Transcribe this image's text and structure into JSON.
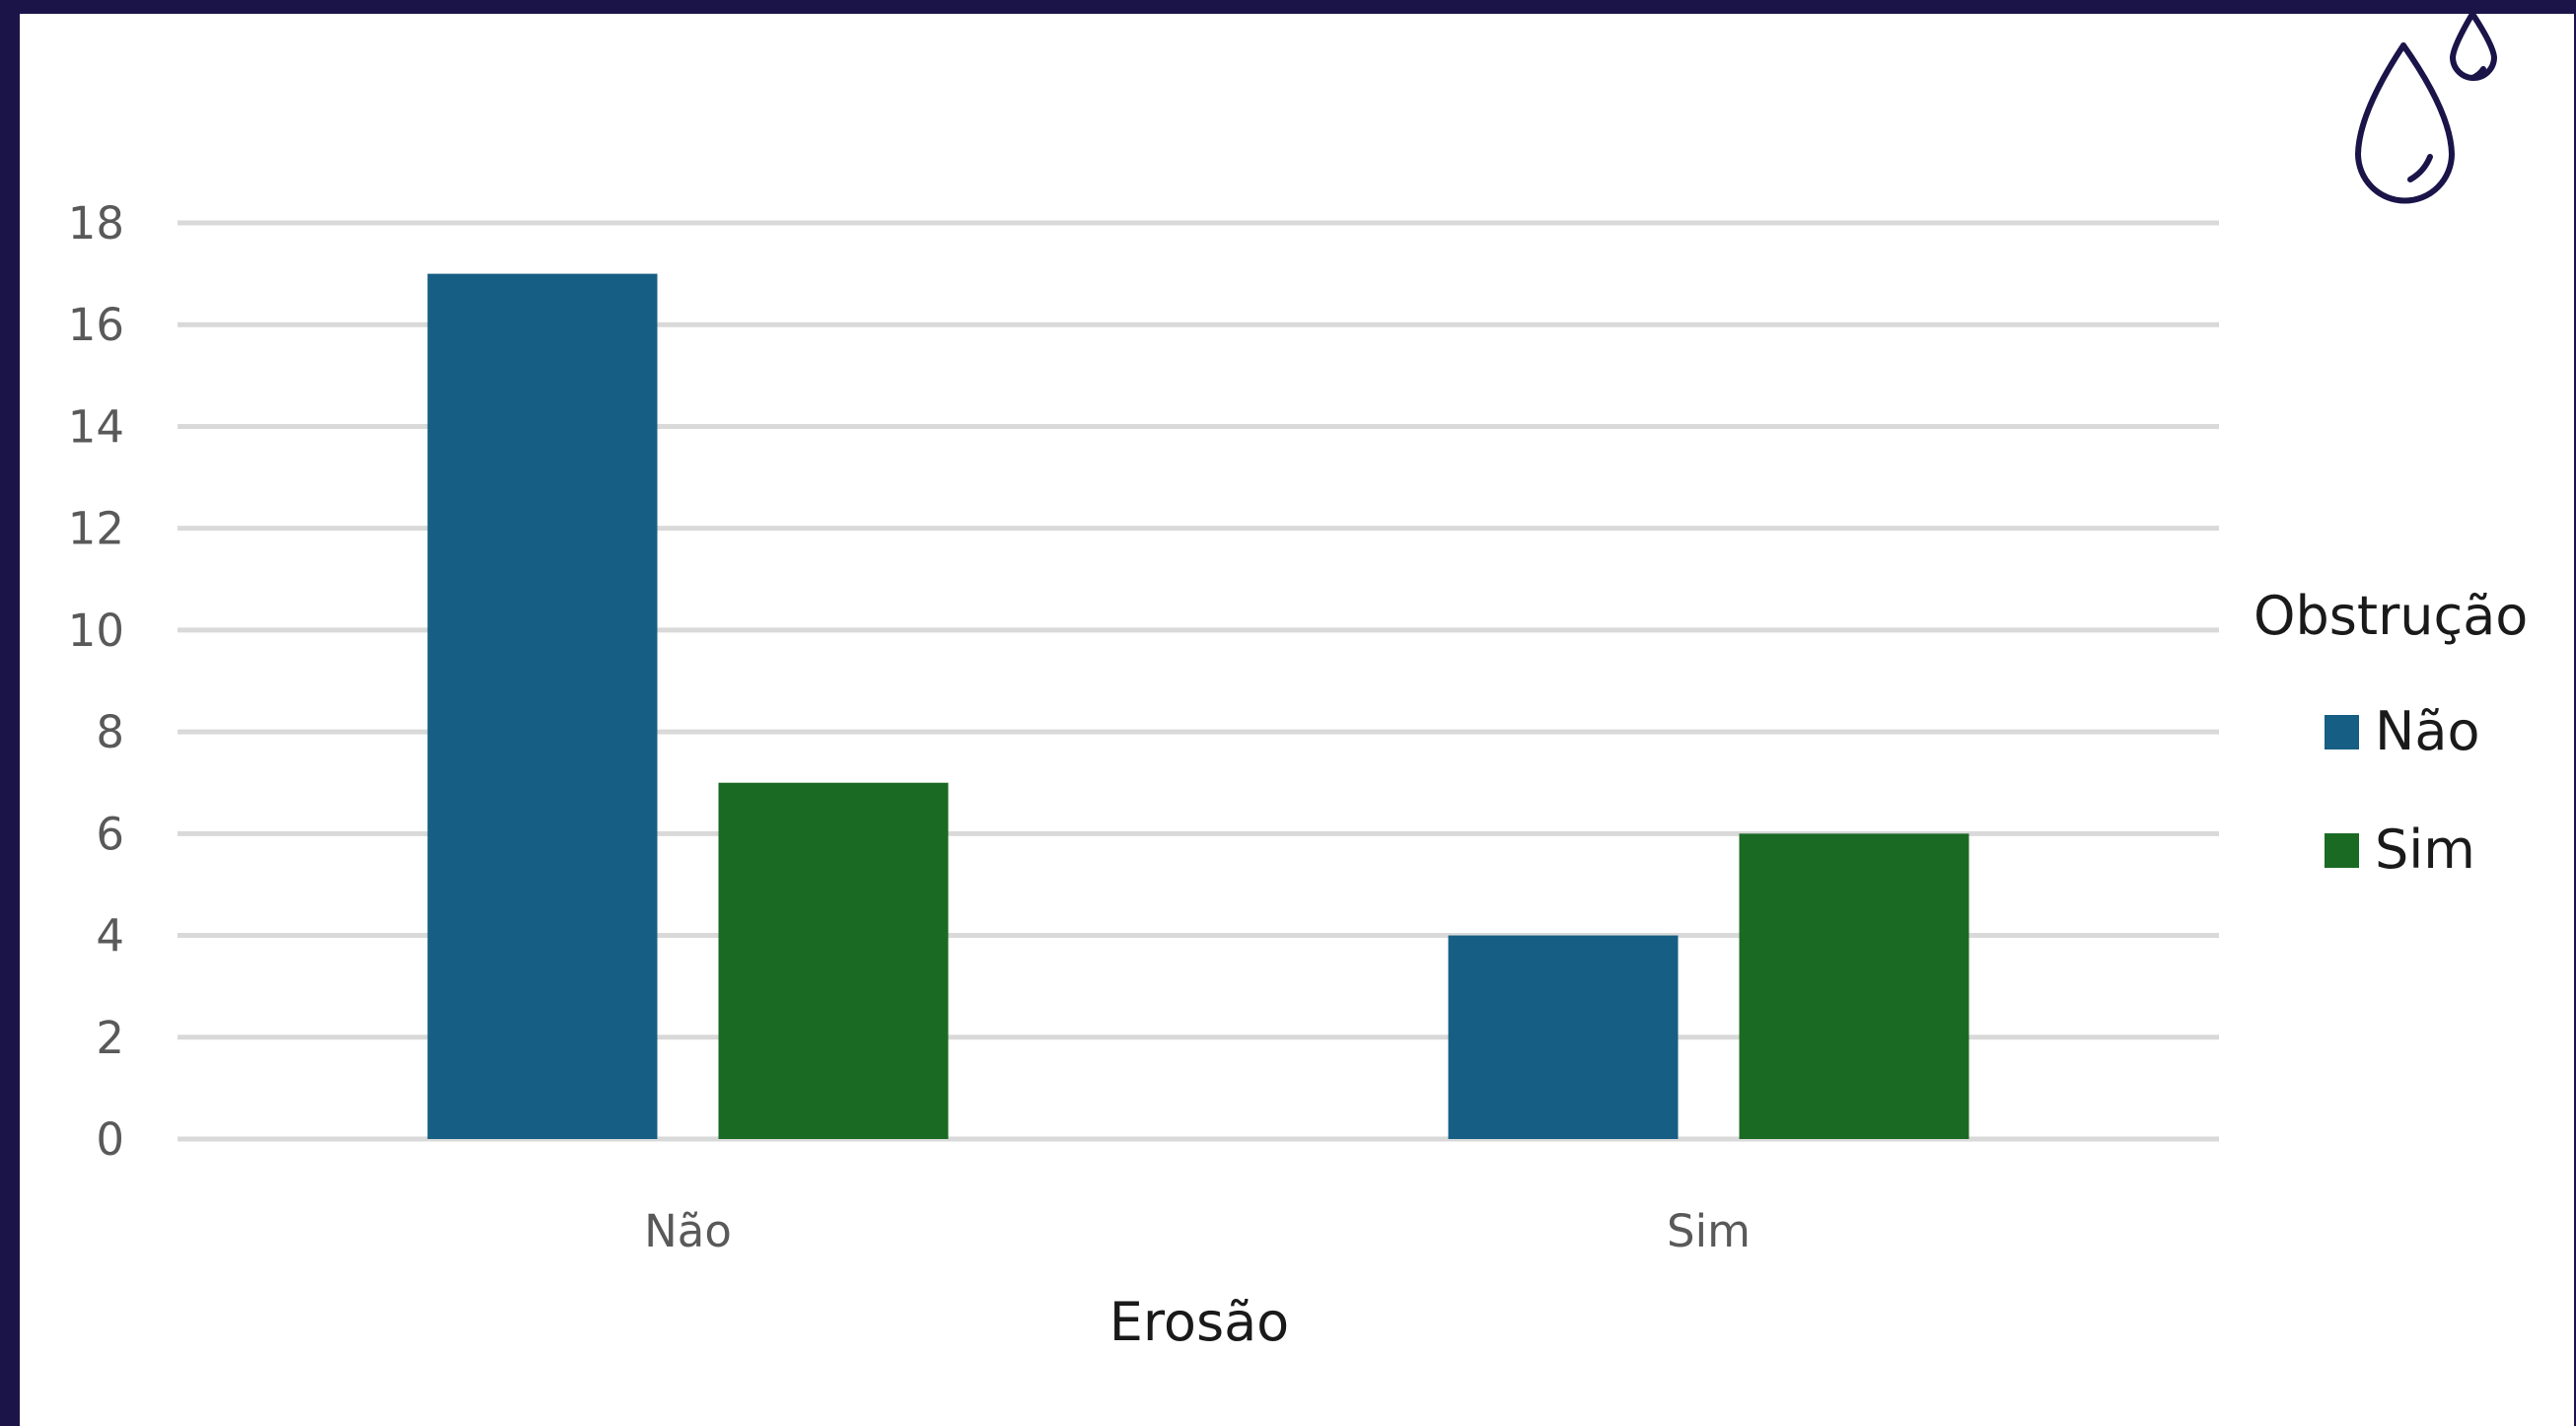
{
  "chart_data": {
    "type": "bar",
    "categories": [
      "Não",
      "Sim"
    ],
    "series": [
      {
        "name": "Não",
        "values": [
          17,
          4
        ],
        "color": "#165e83"
      },
      {
        "name": "Sim",
        "values": [
          7,
          6
        ],
        "color": "#1b6a24"
      }
    ],
    "xlabel": "Erosão",
    "ylabel": "",
    "ylim": [
      0,
      18
    ],
    "yticks": [
      0,
      2,
      4,
      6,
      8,
      10,
      12,
      14,
      16,
      18
    ],
    "legend_title": "Obstrução",
    "legend_position": "right",
    "grid": true
  },
  "decoration": {
    "icon": "water-drops-icon",
    "icon_color": "#1a1449",
    "frame_color": "#1a1449",
    "gridline_color": "#d9d9d9"
  }
}
